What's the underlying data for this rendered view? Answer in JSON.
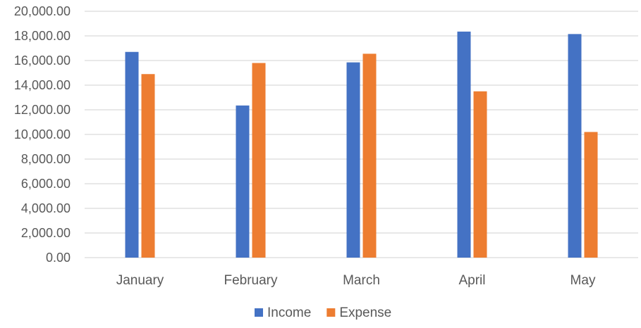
{
  "chart_data": {
    "type": "bar",
    "title": "",
    "xlabel": "",
    "ylabel": "",
    "categories": [
      "January",
      "February",
      "March",
      "April",
      "May"
    ],
    "series": [
      {
        "name": "Income",
        "color": "#4472c4",
        "values": [
          16700,
          12350,
          15850,
          18350,
          18150
        ]
      },
      {
        "name": "Expense",
        "color": "#ed7d31",
        "values": [
          14900,
          15800,
          16550,
          13500,
          10200
        ]
      }
    ],
    "ylim": [
      0,
      20000
    ],
    "yticks": [
      0,
      2000,
      4000,
      6000,
      8000,
      10000,
      12000,
      14000,
      16000,
      18000,
      20000
    ],
    "ytick_labels": [
      "0.00",
      "2,000.00",
      "4,000.00",
      "6,000.00",
      "8,000.00",
      "10,000.00",
      "12,000.00",
      "14,000.00",
      "16,000.00",
      "18,000.00",
      "20,000.00"
    ],
    "grid": true,
    "legend_position": "bottom"
  }
}
